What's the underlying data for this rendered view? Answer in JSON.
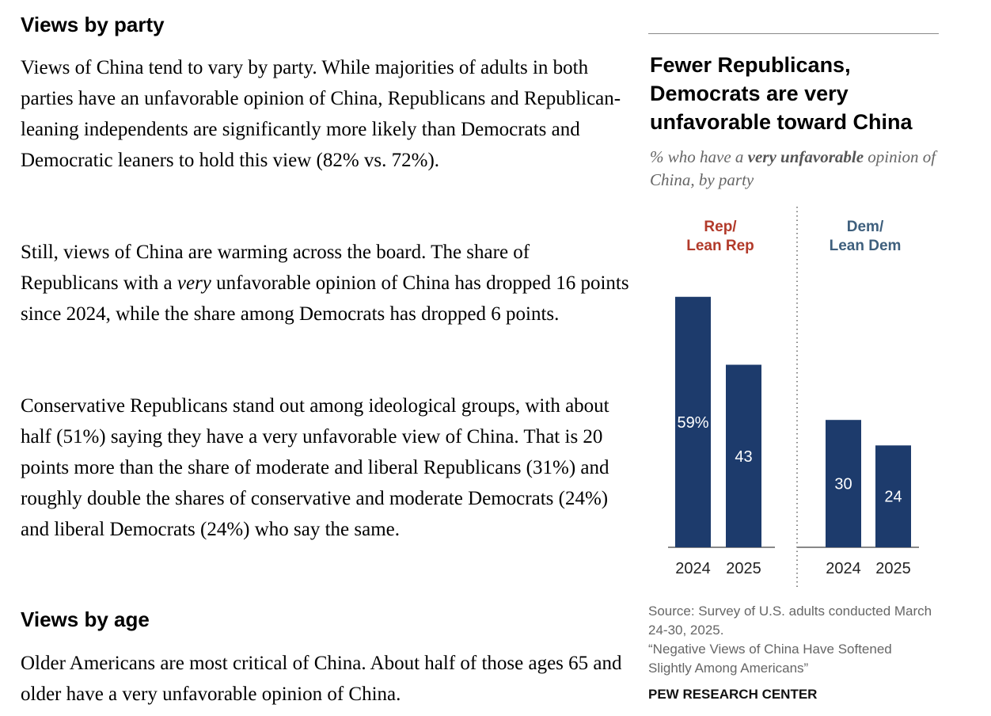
{
  "article": {
    "section1_heading": "Views by party",
    "p1": "Views of China tend to vary by party. While majorities of adults in both parties have an unfavorable opinion of China, Republicans and Republican-leaning independents are significantly more likely than Democrats and Democratic leaners to hold this view (82% vs. 72%).",
    "p2_before": "Still, views of China are warming across the board. The share of Republicans with a ",
    "p2_em": "very",
    "p2_after": " unfavorable opinion of China has dropped 16 points since 2024, while the share among Democrats has dropped 6 points.",
    "p3": "Conservative Republicans stand out among ideological groups, with about half (51%) saying they have a very unfavorable view of China. That is 20 points more than the share of moderate and liberal Republicans (31%) and roughly double the shares of conservative and moderate Democrats (24%) and liberal Democrats (24%) who say the same.",
    "section2_heading": "Views by age",
    "p4": "Older Americans are most critical of China. About half of those ages 65 and older have a very unfavorable opinion of China."
  },
  "chart_data": {
    "type": "bar",
    "title": "Fewer Republicans, Democrats are very unfavorable toward China",
    "subtitle_prefix": "% who have a ",
    "subtitle_bold": "very unfavorable",
    "subtitle_suffix": " opinion of China, by party",
    "ylim": [
      0,
      60
    ],
    "grid": false,
    "groups": [
      {
        "label_line1": "Rep/",
        "label_line2": "Lean Rep",
        "label_color": "#b23a2a",
        "categories": [
          "2024",
          "2025"
        ],
        "values": [
          59,
          43
        ],
        "value_labels": [
          "59%",
          "43"
        ]
      },
      {
        "label_line1": "Dem/",
        "label_line2": "Lean Dem",
        "label_color": "#3e5f7d",
        "categories": [
          "2024",
          "2025"
        ],
        "values": [
          30,
          24
        ],
        "value_labels": [
          "30",
          "24"
        ]
      }
    ],
    "bar_color": "#1d3b6c",
    "value_label_color": "#ffffff"
  },
  "notes": {
    "source": "Source: Survey of U.S. adults conducted March 24-30, 2025.",
    "report": "“Negative Views of China Have Softened Slightly Among Americans”",
    "credit": "PEW RESEARCH CENTER"
  }
}
